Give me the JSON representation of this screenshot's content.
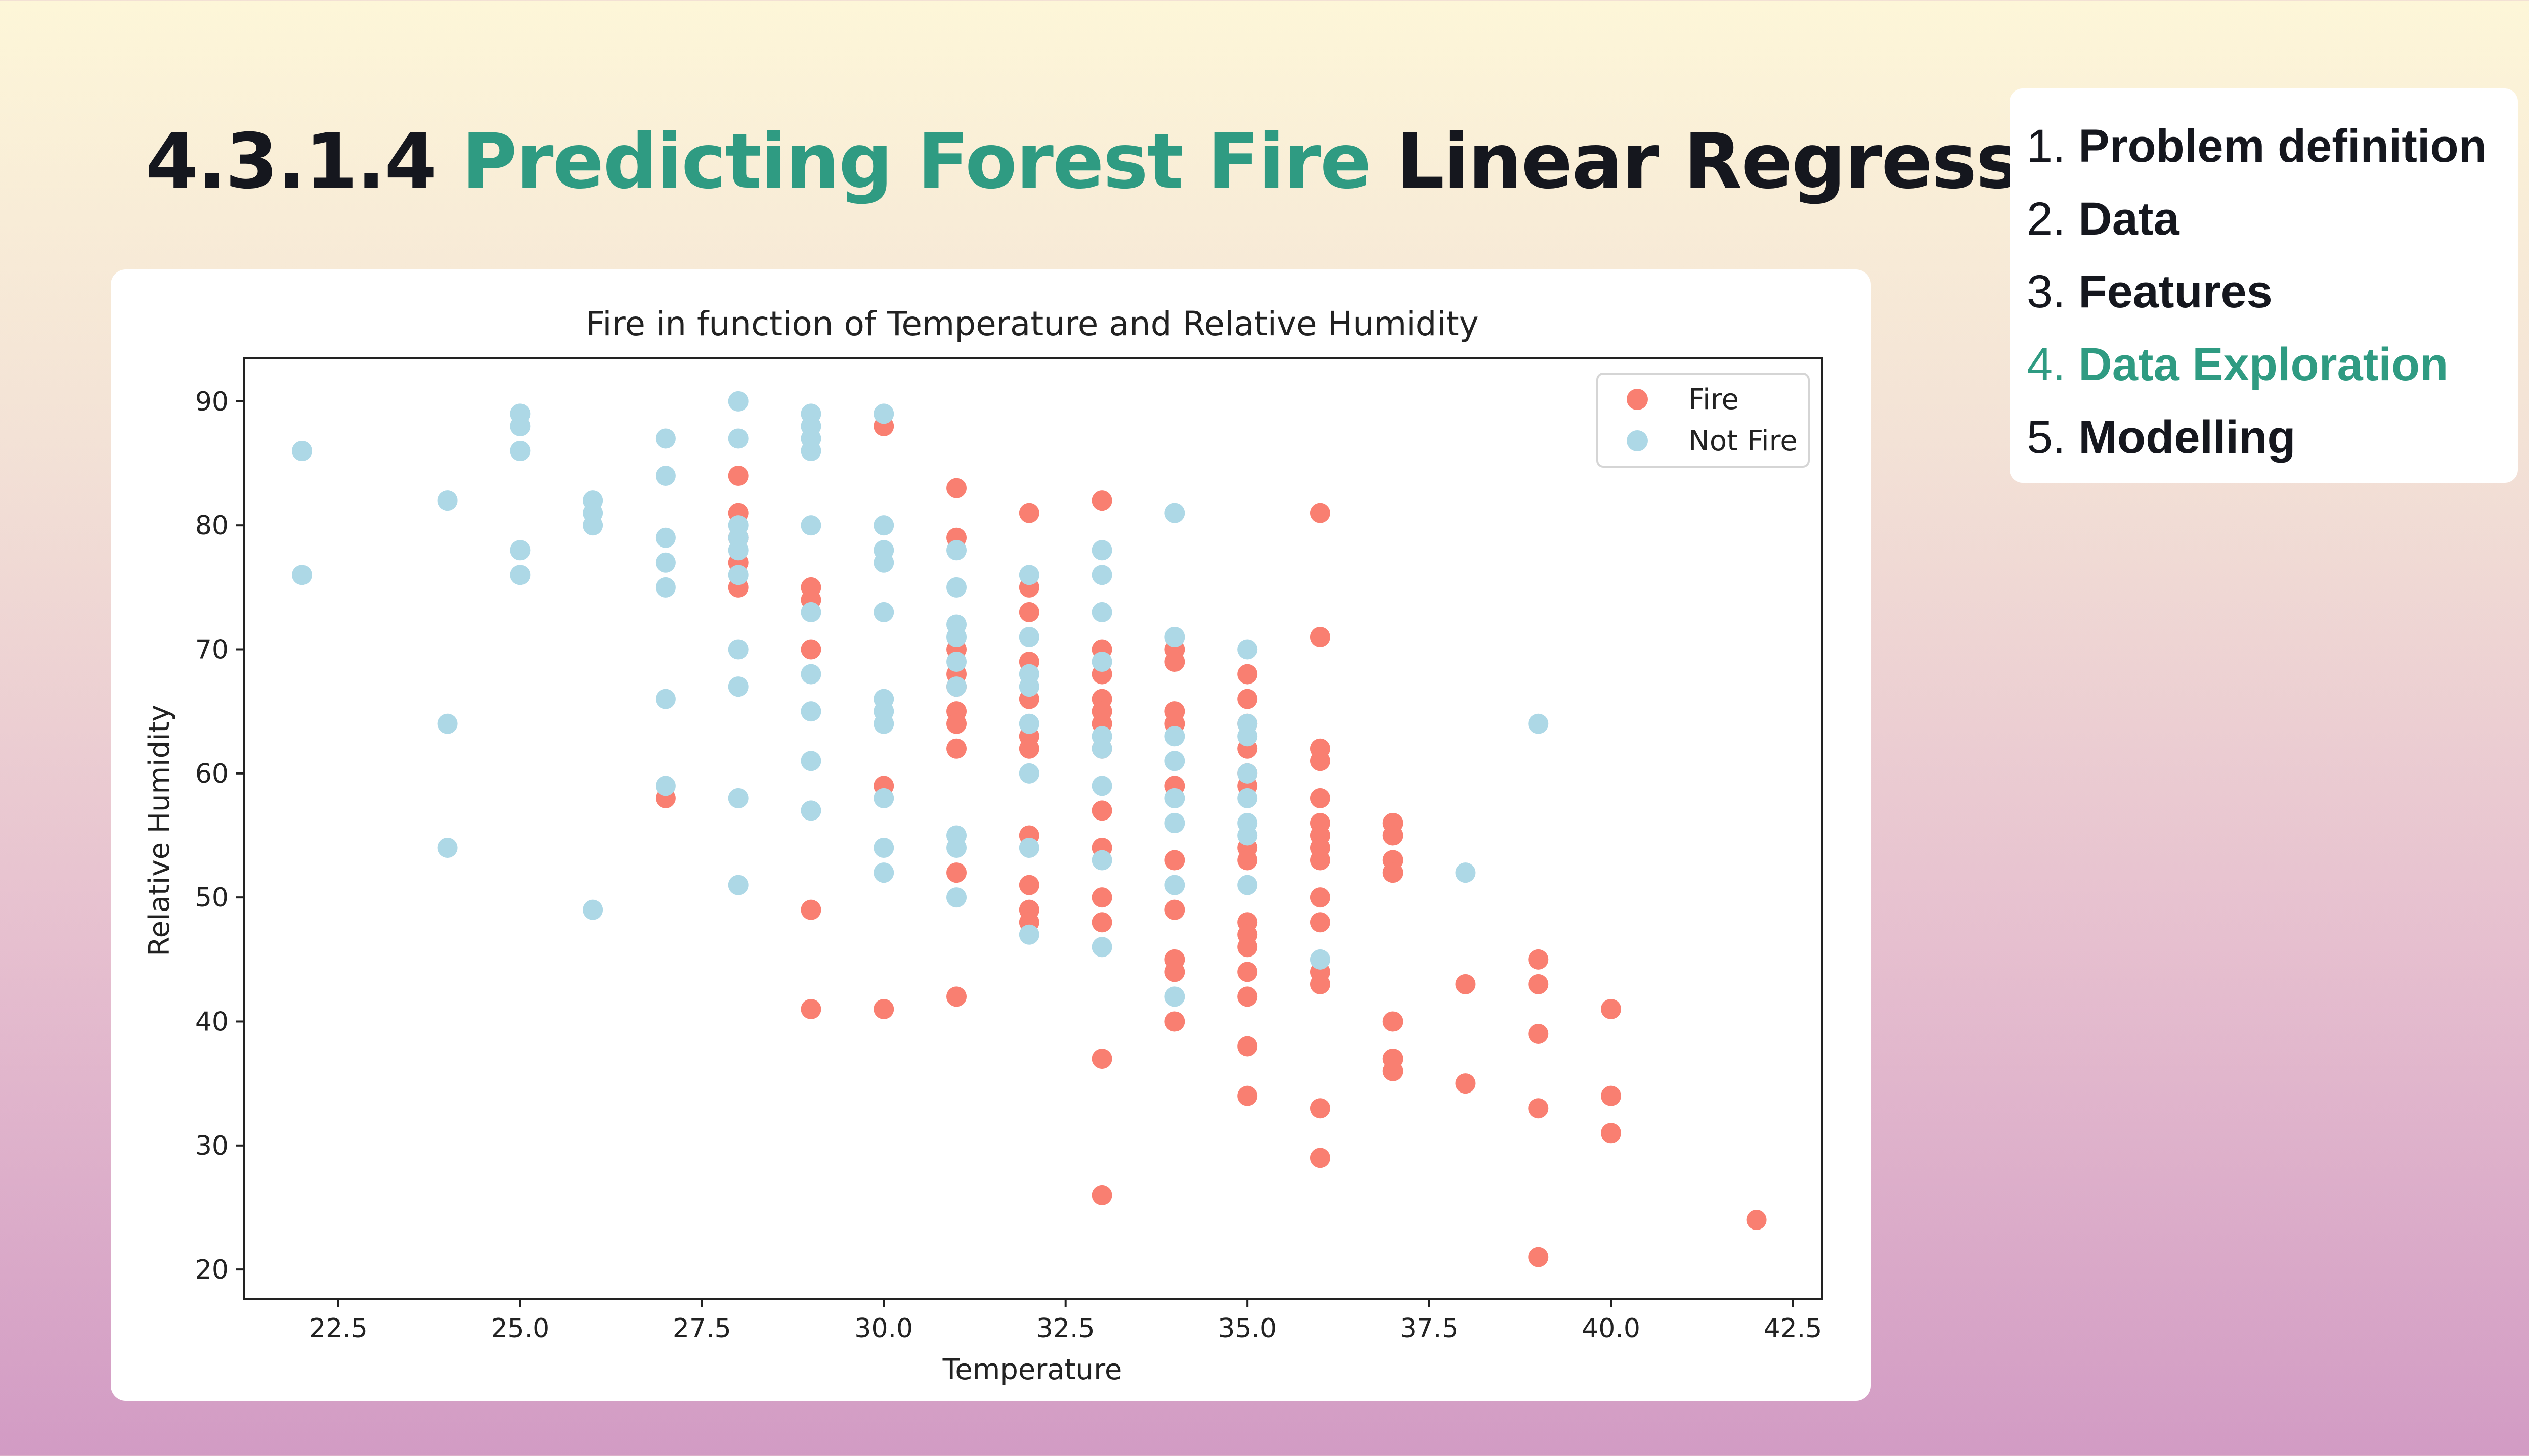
{
  "slide": {
    "title_prefix": "4.3.1.4",
    "title_accent": "Predicting Forest Fire",
    "title_suffix": "Linear Regression"
  },
  "toc": {
    "items": [
      {
        "number": "1.",
        "label": "Problem definition",
        "active": false
      },
      {
        "number": "2.",
        "label": "Data",
        "active": false
      },
      {
        "number": "3.",
        "label": "Features",
        "active": false
      },
      {
        "number": "4.",
        "label": "Data Exploration",
        "active": true
      },
      {
        "number": "5.",
        "label": "Modelling",
        "active": false
      }
    ],
    "active_color": "#2f9b82"
  },
  "chart_data": {
    "type": "scatter",
    "title": "Fire in function of Temperature and Relative Humidity",
    "xlabel": "Temperature",
    "ylabel": "Relative Humidity",
    "xlim": [
      21.2,
      42.9
    ],
    "ylim": [
      17.6,
      93.5
    ],
    "xticks": [
      "22.5",
      "25.0",
      "27.5",
      "30.0",
      "32.5",
      "35.0",
      "37.5",
      "40.0",
      "42.5"
    ],
    "yticks": [
      "20",
      "30",
      "40",
      "50",
      "60",
      "70",
      "80",
      "90"
    ],
    "legend_position": "top-right",
    "grid": false,
    "series": [
      {
        "name": "Fire",
        "color": "#f97f71",
        "points": [
          [
            27,
            58
          ],
          [
            28,
            84
          ],
          [
            28,
            81
          ],
          [
            28,
            79
          ],
          [
            28,
            77
          ],
          [
            28,
            75
          ],
          [
            29,
            75
          ],
          [
            29,
            74
          ],
          [
            29,
            70
          ],
          [
            29,
            49
          ],
          [
            29,
            41
          ],
          [
            30,
            88
          ],
          [
            30,
            59
          ],
          [
            30,
            41
          ],
          [
            31,
            83
          ],
          [
            31,
            79
          ],
          [
            31,
            70
          ],
          [
            31,
            68
          ],
          [
            31,
            67
          ],
          [
            31,
            65
          ],
          [
            31,
            64
          ],
          [
            31,
            62
          ],
          [
            31,
            52
          ],
          [
            31,
            42
          ],
          [
            32,
            81
          ],
          [
            32,
            75
          ],
          [
            32,
            73
          ],
          [
            32,
            69
          ],
          [
            32,
            66
          ],
          [
            32,
            63
          ],
          [
            32,
            62
          ],
          [
            32,
            55
          ],
          [
            32,
            51
          ],
          [
            32,
            49
          ],
          [
            32,
            48
          ],
          [
            33,
            82
          ],
          [
            33,
            70
          ],
          [
            33,
            68
          ],
          [
            33,
            66
          ],
          [
            33,
            65
          ],
          [
            33,
            64
          ],
          [
            33,
            62
          ],
          [
            33,
            57
          ],
          [
            33,
            54
          ],
          [
            33,
            50
          ],
          [
            33,
            48
          ],
          [
            33,
            37
          ],
          [
            33,
            26
          ],
          [
            34,
            70
          ],
          [
            34,
            69
          ],
          [
            34,
            65
          ],
          [
            34,
            64
          ],
          [
            34,
            59
          ],
          [
            34,
            53
          ],
          [
            34,
            49
          ],
          [
            34,
            45
          ],
          [
            34,
            44
          ],
          [
            34,
            40
          ],
          [
            35,
            68
          ],
          [
            35,
            66
          ],
          [
            35,
            64
          ],
          [
            35,
            62
          ],
          [
            35,
            60
          ],
          [
            35,
            59
          ],
          [
            35,
            54
          ],
          [
            35,
            53
          ],
          [
            35,
            48
          ],
          [
            35,
            47
          ],
          [
            35,
            46
          ],
          [
            35,
            44
          ],
          [
            35,
            42
          ],
          [
            35,
            38
          ],
          [
            35,
            34
          ],
          [
            36,
            81
          ],
          [
            36,
            71
          ],
          [
            36,
            62
          ],
          [
            36,
            61
          ],
          [
            36,
            58
          ],
          [
            36,
            56
          ],
          [
            36,
            55
          ],
          [
            36,
            54
          ],
          [
            36,
            53
          ],
          [
            36,
            50
          ],
          [
            36,
            48
          ],
          [
            36,
            44
          ],
          [
            36,
            43
          ],
          [
            36,
            33
          ],
          [
            36,
            29
          ],
          [
            37,
            56
          ],
          [
            37,
            55
          ],
          [
            37,
            53
          ],
          [
            37,
            52
          ],
          [
            37,
            40
          ],
          [
            37,
            37
          ],
          [
            37,
            36
          ],
          [
            38,
            43
          ],
          [
            38,
            35
          ],
          [
            39,
            45
          ],
          [
            39,
            43
          ],
          [
            39,
            39
          ],
          [
            39,
            33
          ],
          [
            39,
            21
          ],
          [
            40,
            41
          ],
          [
            40,
            34
          ],
          [
            40,
            31
          ],
          [
            42,
            24
          ]
        ]
      },
      {
        "name": "Not Fire",
        "color": "#add8e6",
        "points": [
          [
            22,
            86
          ],
          [
            22,
            76
          ],
          [
            24,
            82
          ],
          [
            24,
            64
          ],
          [
            24,
            54
          ],
          [
            25,
            89
          ],
          [
            25,
            88
          ],
          [
            25,
            86
          ],
          [
            25,
            78
          ],
          [
            25,
            76
          ],
          [
            26,
            82
          ],
          [
            26,
            81
          ],
          [
            26,
            80
          ],
          [
            26,
            49
          ],
          [
            27,
            87
          ],
          [
            27,
            84
          ],
          [
            27,
            79
          ],
          [
            27,
            77
          ],
          [
            27,
            75
          ],
          [
            27,
            66
          ],
          [
            27,
            59
          ],
          [
            28,
            90
          ],
          [
            28,
            87
          ],
          [
            28,
            80
          ],
          [
            28,
            79
          ],
          [
            28,
            78
          ],
          [
            28,
            76
          ],
          [
            28,
            70
          ],
          [
            28,
            67
          ],
          [
            28,
            58
          ],
          [
            28,
            51
          ],
          [
            29,
            89
          ],
          [
            29,
            88
          ],
          [
            29,
            87
          ],
          [
            29,
            86
          ],
          [
            29,
            80
          ],
          [
            29,
            73
          ],
          [
            29,
            68
          ],
          [
            29,
            65
          ],
          [
            29,
            61
          ],
          [
            29,
            57
          ],
          [
            30,
            89
          ],
          [
            30,
            80
          ],
          [
            30,
            78
          ],
          [
            30,
            77
          ],
          [
            30,
            73
          ],
          [
            30,
            66
          ],
          [
            30,
            65
          ],
          [
            30,
            64
          ],
          [
            30,
            58
          ],
          [
            30,
            54
          ],
          [
            30,
            52
          ],
          [
            31,
            78
          ],
          [
            31,
            75
          ],
          [
            31,
            72
          ],
          [
            31,
            71
          ],
          [
            31,
            69
          ],
          [
            31,
            67
          ],
          [
            31,
            55
          ],
          [
            31,
            54
          ],
          [
            31,
            50
          ],
          [
            32,
            76
          ],
          [
            32,
            71
          ],
          [
            32,
            68
          ],
          [
            32,
            67
          ],
          [
            32,
            64
          ],
          [
            32,
            60
          ],
          [
            32,
            54
          ],
          [
            32,
            47
          ],
          [
            33,
            78
          ],
          [
            33,
            76
          ],
          [
            33,
            73
          ],
          [
            33,
            69
          ],
          [
            33,
            63
          ],
          [
            33,
            62
          ],
          [
            33,
            59
          ],
          [
            33,
            53
          ],
          [
            33,
            46
          ],
          [
            34,
            81
          ],
          [
            34,
            71
          ],
          [
            34,
            63
          ],
          [
            34,
            61
          ],
          [
            34,
            58
          ],
          [
            34,
            56
          ],
          [
            34,
            51
          ],
          [
            34,
            42
          ],
          [
            35,
            70
          ],
          [
            35,
            64
          ],
          [
            35,
            63
          ],
          [
            35,
            60
          ],
          [
            35,
            58
          ],
          [
            35,
            56
          ],
          [
            35,
            55
          ],
          [
            35,
            51
          ],
          [
            36,
            45
          ],
          [
            38,
            52
          ],
          [
            39,
            64
          ]
        ]
      }
    ]
  }
}
